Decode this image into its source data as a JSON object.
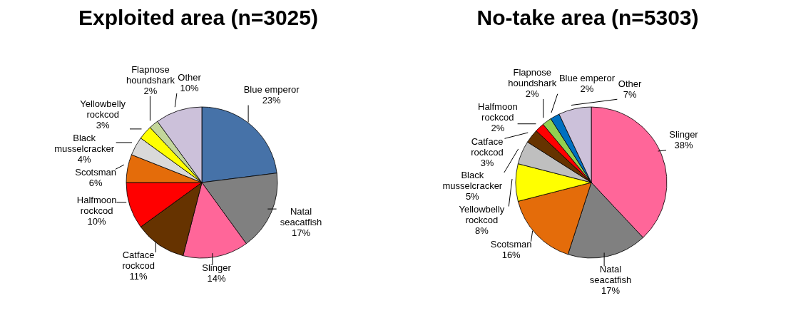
{
  "chart_data": [
    {
      "type": "pie",
      "title": "Exploited area (n=3025)",
      "categories": [
        "Blue emperor",
        "Natal seacatfish",
        "Slinger",
        "Catface rockcod",
        "Halfmoon rockcod",
        "Scotsman",
        "Black musselcracker",
        "Yellowbelly rockcod",
        "Flapnose houndshark",
        "Other"
      ],
      "values": [
        23,
        17,
        14,
        11,
        10,
        6,
        4,
        3,
        2,
        10
      ],
      "value_labels": [
        "23%",
        "17%",
        "14%",
        "11%",
        "10%",
        "6%",
        "4%",
        "3%",
        "2%",
        "10%"
      ],
      "colors": [
        "#4672a8",
        "#808080",
        "#ff6699",
        "#663300",
        "#ff0000",
        "#e46c0a",
        "#d9d9d9",
        "#ffff00",
        "#c3d69b",
        "#ccc1da"
      ],
      "legend": false
    },
    {
      "type": "pie",
      "title": "No-take area (n=5303)",
      "categories": [
        "Slinger",
        "Natal seacatfish",
        "Scotsman",
        "Yellowbelly rockcod",
        "Black musselcracker",
        "Catface rockcod",
        "Halfmoon rockcod",
        "Flapnose houndshark",
        "Blue emperor",
        "Other"
      ],
      "values": [
        38,
        17,
        16,
        8,
        5,
        3,
        2,
        2,
        2,
        7
      ],
      "value_labels": [
        "38%",
        "17%",
        "16%",
        "8%",
        "5%",
        "3%",
        "2%",
        "2%",
        "2%",
        "7%"
      ],
      "colors": [
        "#ff6699",
        "#808080",
        "#e46c0a",
        "#ffff00",
        "#bfbfbf",
        "#663300",
        "#ff0000",
        "#92d050",
        "#0070c0",
        "#ccc1da"
      ],
      "legend": false
    }
  ]
}
